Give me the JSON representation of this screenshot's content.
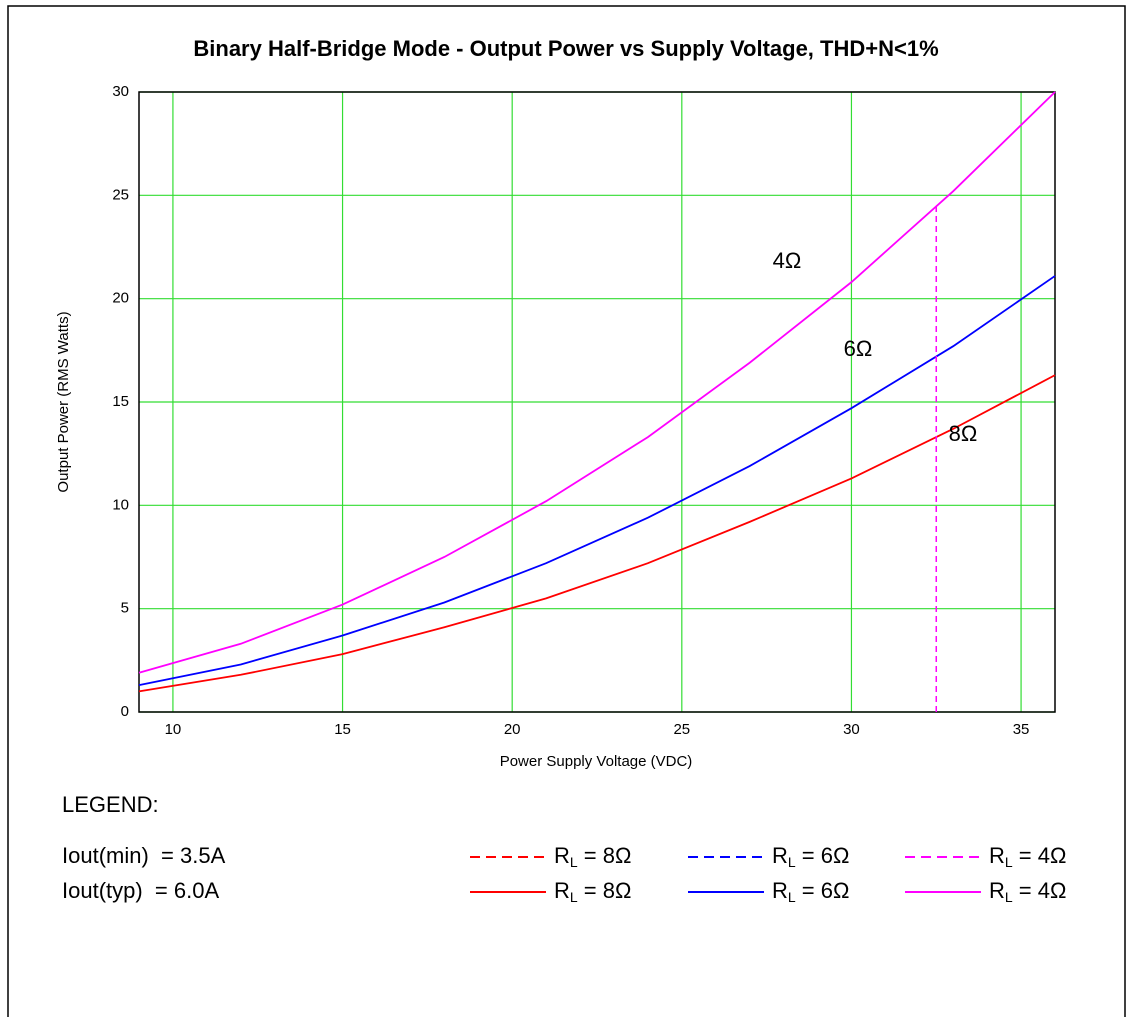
{
  "chart_data": {
    "type": "line",
    "title": "Binary Half-Bridge Mode - Output Power vs Supply Voltage, THD+N<1%",
    "x_label": "Power Supply Voltage (VDC)",
    "y_label": "Output Power (RMS Watts)",
    "x": [
      9,
      12,
      15,
      18,
      21,
      24,
      27,
      30,
      33,
      36
    ],
    "series": [
      {
        "color": "#ff00ff",
        "values": [
          1.9,
          3.3,
          5.2,
          7.5,
          10.2,
          13.3,
          16.9,
          20.8,
          25.2,
          30
        ]
      },
      {
        "color": "#0000ff",
        "values": [
          1.3,
          2.3,
          3.7,
          5.3,
          7.2,
          9.4,
          11.9,
          14.7,
          17.7,
          21.1
        ]
      },
      {
        "color": "#ff0000",
        "values": [
          1.0,
          1.8,
          2.8,
          4.1,
          5.5,
          7.2,
          9.2,
          11.3,
          13.7,
          16.3
        ]
      }
    ],
    "marker_line": {
      "color": "#ff00ff",
      "dashed": true,
      "x": [
        32.5,
        32.5
      ],
      "values": [
        0,
        24.5
      ]
    },
    "curve_labels": [
      "4Ω",
      "6Ω",
      "8Ω"
    ],
    "xlim": [
      9,
      36
    ],
    "xticks": [
      10,
      15,
      20,
      25,
      30,
      35
    ],
    "ylim": [
      0,
      30
    ],
    "yticks": [
      0,
      5,
      10,
      15,
      20,
      25,
      30
    ],
    "grid": true,
    "grid_color": "#33dd33",
    "legend": {
      "heading": "LEGEND:",
      "rows": [
        {
          "text": "Iout(min)  = 3.5A",
          "dashed": true,
          "entries": [
            {
              "color": "#ff0000",
              "symbol": "R",
              "sub": "L",
              "text": " = 8Ω"
            },
            {
              "color": "#0000ff",
              "symbol": "R",
              "sub": "L",
              "text": " = 6Ω"
            },
            {
              "color": "#ff00ff",
              "symbol": "R",
              "sub": "L",
              "text": " = 4Ω"
            }
          ]
        },
        {
          "text": "Iout(typ)  = 6.0A",
          "dashed": false,
          "entries": [
            {
              "color": "#ff0000",
              "symbol": "R",
              "sub": "L",
              "text": " = 8Ω"
            },
            {
              "color": "#0000ff",
              "symbol": "R",
              "sub": "L",
              "text": " = 6Ω"
            },
            {
              "color": "#ff00ff",
              "symbol": "R",
              "sub": "L",
              "text": " = 4Ω"
            }
          ]
        }
      ]
    }
  }
}
